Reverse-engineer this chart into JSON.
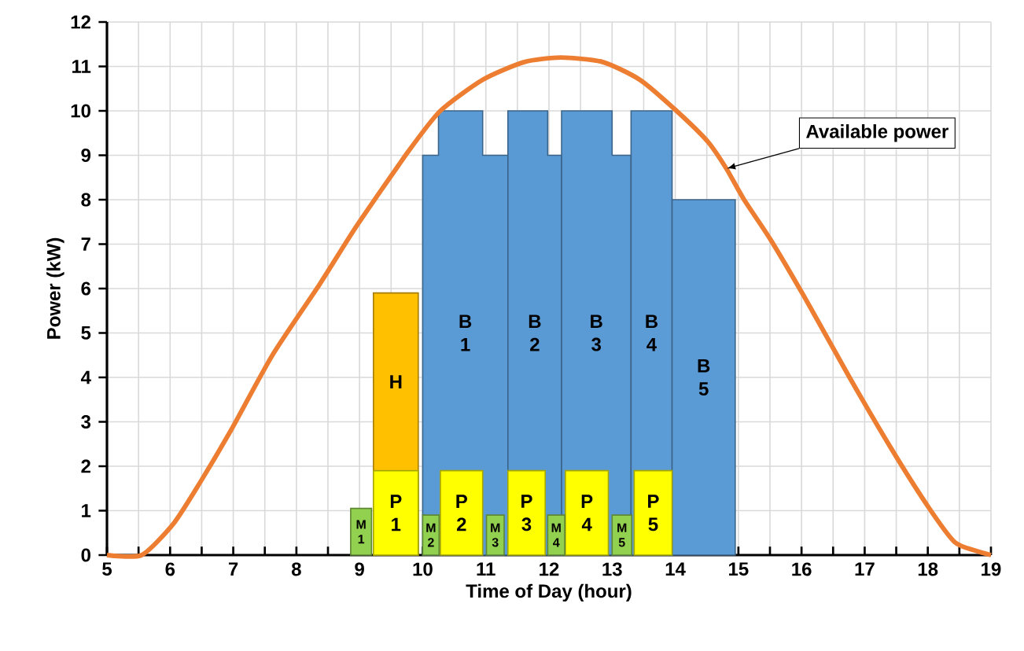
{
  "chart_data": {
    "type": "area",
    "xlabel": "Time of Day (hour)",
    "ylabel": "Power (kW)",
    "xlim": [
      5,
      19
    ],
    "ylim": [
      0,
      12
    ],
    "xticks": [
      5,
      {
        "value": 5.5,
        "label": null
      },
      6,
      {
        "value": 6.5,
        "label": null
      },
      7,
      {
        "value": 7.5,
        "label": null
      },
      8,
      {
        "value": 8.5,
        "label": null
      },
      9,
      {
        "value": 9.5,
        "label": null
      },
      10,
      {
        "value": 10.5,
        "label": null
      },
      11,
      {
        "value": 11.5,
        "label": null
      },
      12,
      {
        "value": 12.5,
        "label": null
      },
      13,
      {
        "value": 13.5,
        "label": null
      },
      14,
      {
        "value": 14.5,
        "label": null
      },
      15,
      {
        "value": 15.5,
        "label": null
      },
      16,
      {
        "value": 16.5,
        "label": null
      },
      17,
      {
        "value": 17.5,
        "label": null
      },
      18,
      {
        "value": 18.5,
        "label": null
      },
      19
    ],
    "yticks": [
      0,
      1,
      2,
      3,
      4,
      5,
      6,
      7,
      8,
      9,
      10,
      11,
      12
    ],
    "grid": true,
    "series": [
      {
        "name": "B 1",
        "color": "#5b9bd5",
        "x": [
          10,
          10.25,
          10.25,
          10.95,
          10.95,
          11.35
        ],
        "values": [
          9,
          9,
          10,
          10,
          9,
          9
        ]
      },
      {
        "name": "B 2",
        "color": "#5a9ad4",
        "x": [
          11.35,
          11.98,
          11.98,
          12.2
        ],
        "values": [
          10,
          10,
          9,
          9
        ]
      },
      {
        "name": "B 3",
        "color": "#5b9bd5",
        "x": [
          12.2,
          13,
          13,
          13.3
        ],
        "values": [
          10,
          10,
          9,
          9
        ]
      },
      {
        "name": "B 4",
        "color": "#5c9cd6",
        "x": [
          13.3,
          13.95
        ],
        "values": [
          10,
          10
        ]
      },
      {
        "name": "B 5",
        "color": "#5b9bd5",
        "x": [
          13.95,
          14.95
        ],
        "values": [
          8,
          8
        ]
      },
      {
        "name": "H",
        "color": "#ffc000",
        "x": [
          9.22,
          9.93
        ],
        "values": [
          5.9,
          5.9
        ]
      },
      {
        "name": "P 1",
        "color": "#ffff00",
        "x": [
          9.22,
          9.93
        ],
        "values": [
          1.9,
          1.9
        ]
      },
      {
        "name": "P 2",
        "color": "#ffff00",
        "x": [
          10.28,
          10.95
        ],
        "values": [
          1.9,
          1.9
        ]
      },
      {
        "name": "P 3",
        "color": "#ffff00",
        "x": [
          11.35,
          11.94
        ],
        "values": [
          1.9,
          1.9
        ]
      },
      {
        "name": "P 4",
        "color": "#ffff00",
        "x": [
          12.26,
          12.94
        ],
        "values": [
          1.9,
          1.9
        ]
      },
      {
        "name": "P 5",
        "color": "#ffff00",
        "x": [
          13.35,
          13.95
        ],
        "values": [
          1.9,
          1.9
        ]
      },
      {
        "name": "M 1",
        "color": "#92d050",
        "x": [
          8.86,
          9.19
        ],
        "values": [
          1.05,
          1.05
        ]
      },
      {
        "name": "M 2",
        "color": "#92d050",
        "x": [
          10,
          10.26
        ],
        "values": [
          0.9,
          0.9
        ]
      },
      {
        "name": "M 3",
        "color": "#92d050",
        "x": [
          11.01,
          11.29
        ],
        "values": [
          0.9,
          0.9
        ]
      },
      {
        "name": "M 4",
        "color": "#92d050",
        "x": [
          11.98,
          12.25
        ],
        "values": [
          0.9,
          0.9
        ]
      },
      {
        "name": "M 5",
        "color": "#92d050",
        "x": [
          13,
          13.31
        ],
        "values": [
          0.9,
          0.9
        ]
      },
      {
        "type": "line",
        "color": "#ed7d31",
        "x": [
          5,
          5.55,
          6.05,
          6.46,
          6.96,
          7.62,
          8.37,
          8.95,
          9.78,
          10.28,
          10.95,
          11.61,
          12.19,
          12.85,
          13.44,
          14.02,
          14.52,
          14.81,
          15.09,
          15.51,
          16.09,
          16.76,
          17.42,
          18,
          18.42,
          18.75,
          19
        ],
        "values": [
          0,
          0,
          0.7,
          1.6,
          2.8,
          4.5,
          6.1,
          7.4,
          9.1,
          10,
          10.7,
          11.1,
          11.2,
          11.1,
          10.7,
          10,
          9.3,
          8.7,
          8,
          7.1,
          5.7,
          4,
          2.4,
          1.1,
          0.3,
          0.1,
          0
        ]
      }
    ],
    "annotations": [
      {
        "text": "Available power",
        "x": 14.81,
        "y": 8.7
      }
    ]
  }
}
